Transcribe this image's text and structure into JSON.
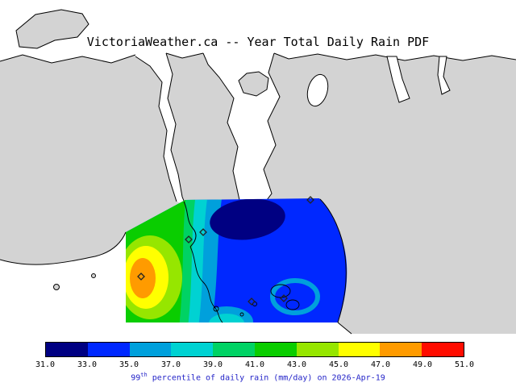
{
  "title": "VictoriaWeather.ca -- Year Total Daily Rain PDF",
  "caption": {
    "base_left": "99",
    "superscript": "th",
    "base_right": " percentile of daily rain (mm/day) on 2026-Apr-19"
  },
  "colorbar": {
    "tick_labels": [
      "31.0",
      "33.0",
      "35.0",
      "37.0",
      "39.0",
      "41.0",
      "43.0",
      "45.0",
      "47.0",
      "49.0",
      "51.0"
    ],
    "segment_colors": [
      "#000082",
      "#0028FF",
      "#00A0DC",
      "#00D2D2",
      "#00D264",
      "#0ACD00",
      "#96E600",
      "#FFFF00",
      "#FF9B00",
      "#FF0C00"
    ]
  },
  "map": {
    "type": "filled-contour weather map",
    "variable": "99th percentile of daily rain",
    "units": "mm/day",
    "date": "2026-Apr-19",
    "contour_levels": [
      31,
      33,
      35,
      37,
      39,
      41,
      43,
      45,
      47,
      49,
      51
    ],
    "value_low_pocket": "31-33 (dark navy pocket, east-center)",
    "value_high_pocket": "47-49 (orange core, west side)",
    "land_color": "#d3d3d3",
    "water_color": "#ffffff",
    "station_marker_count": 6
  }
}
